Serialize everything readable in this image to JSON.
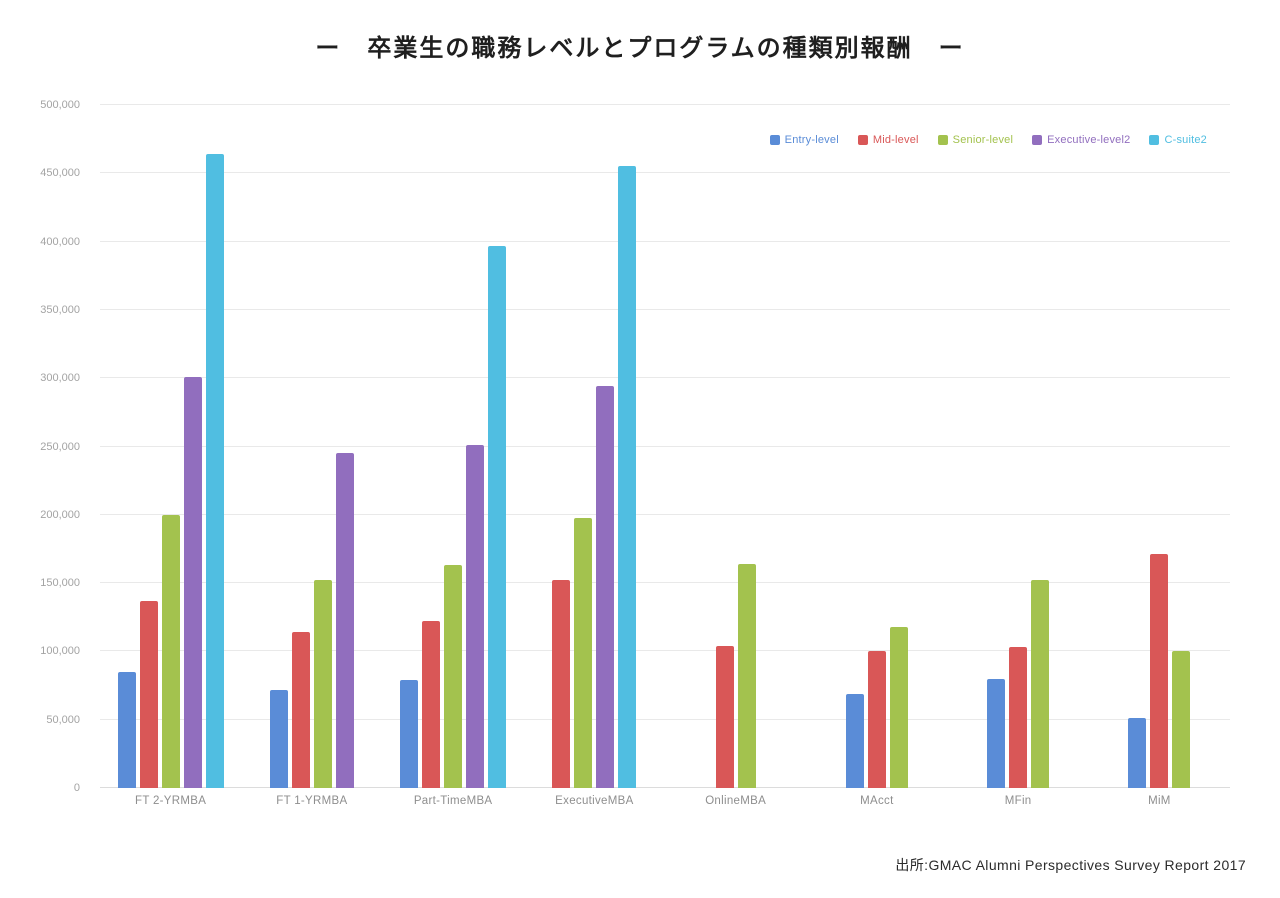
{
  "title": "ー　卒業生の職務レベルとプログラムの種類別報酬　ー",
  "source": "出所:GMAC Alumni Perspectives Survey Report 2017",
  "chart_data": {
    "type": "bar",
    "title": "卒業生の職務レベルとプログラムの種類別報酬",
    "categories": [
      "FT 2-YRMBA",
      "FT 1-YRMBA",
      "Part-TimeMBA",
      "ExecutiveMBA",
      "OnlineMBA",
      "MAcct",
      "MFin",
      "MiM"
    ],
    "series": [
      {
        "name": "Entry-level",
        "color": "#5a8cd7",
        "values": [
          85000,
          72000,
          79000,
          null,
          null,
          69000,
          80000,
          51000
        ]
      },
      {
        "name": "Mid-level",
        "color": "#d95757",
        "values": [
          137000,
          114000,
          122000,
          152000,
          104000,
          100000,
          103000,
          171000
        ]
      },
      {
        "name": "Senior-level",
        "color": "#a3c24e",
        "values": [
          200000,
          152000,
          163000,
          198000,
          164000,
          118000,
          152000,
          100000
        ]
      },
      {
        "name": "Executive-level2",
        "color": "#916ebe",
        "values": [
          301000,
          245000,
          251000,
          294000,
          null,
          null,
          null,
          null
        ]
      },
      {
        "name": "C-suite2",
        "color": "#50bee1",
        "values": [
          464000,
          null,
          397000,
          455000,
          null,
          null,
          null,
          null
        ]
      }
    ],
    "ylim": [
      0,
      500000
    ],
    "ytick_step": 50000,
    "ytick_labels": [
      "0",
      "50,000",
      "100,000",
      "150,000",
      "200,000",
      "250,000",
      "300,000",
      "350,000",
      "400,000",
      "450,000",
      "500,000"
    ],
    "grid": true,
    "legend_position": "top-right",
    "gridline_color": "#e9e9e9"
  }
}
